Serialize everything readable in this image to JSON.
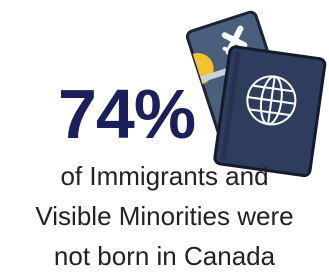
{
  "stat": "74%",
  "caption": [
    "of Immigrants and",
    "Visible Minorities were",
    "not born in Canada"
  ]
}
